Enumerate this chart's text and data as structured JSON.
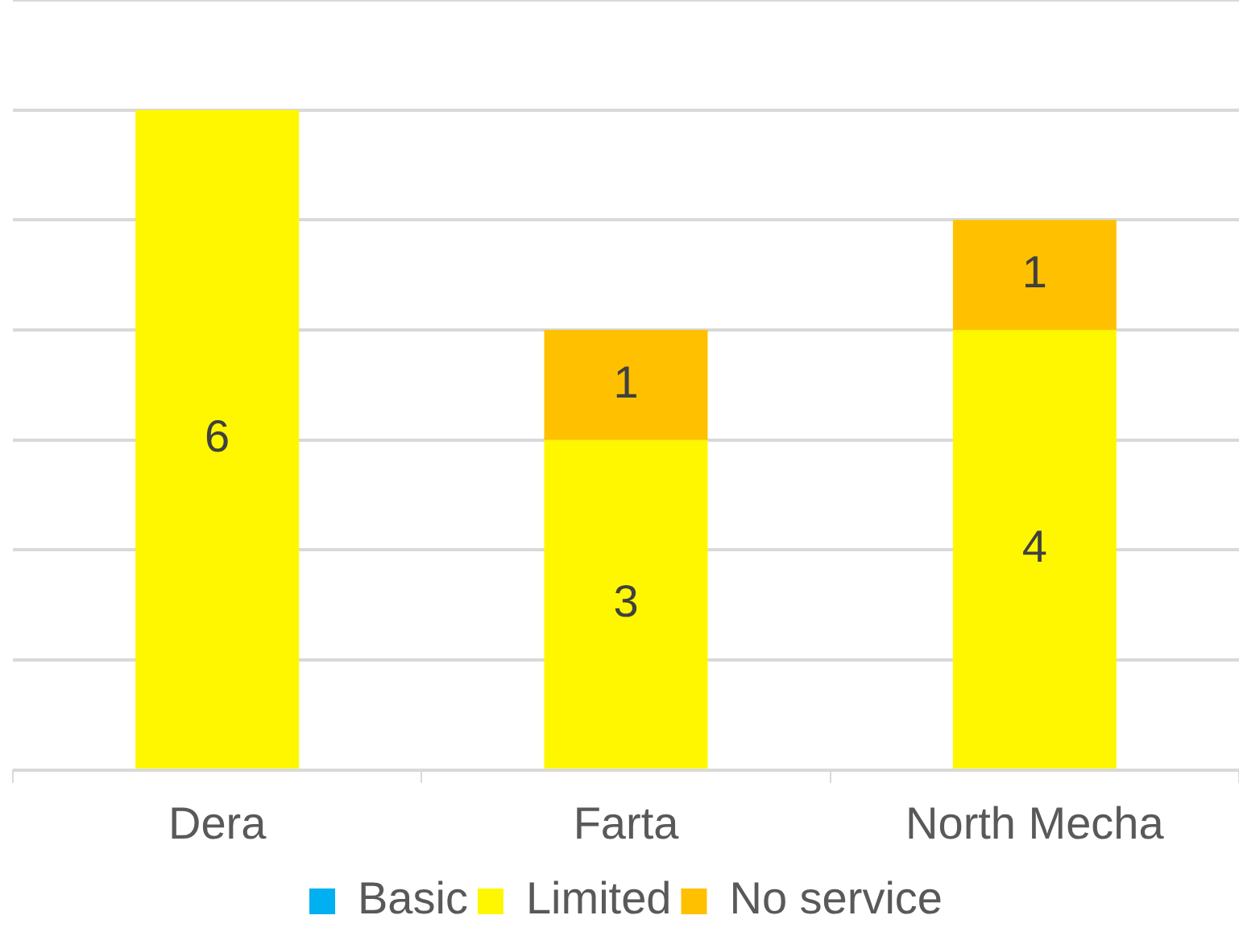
{
  "chart_data": {
    "type": "bar",
    "stacked": true,
    "categories": [
      "Dera",
      "Farta",
      "North Mecha"
    ],
    "series": [
      {
        "name": "Basic",
        "color": "#00b0f0",
        "values": [
          null,
          null,
          null
        ]
      },
      {
        "name": "Limited",
        "color": "#fff700",
        "values": [
          6,
          3,
          4
        ]
      },
      {
        "name": "No service",
        "color": "#ffc000",
        "values": [
          null,
          1,
          1
        ]
      }
    ],
    "ylim": [
      0,
      7
    ],
    "yticks": [
      {
        "value": 0,
        "label": null
      },
      {
        "value": 1,
        "label": null
      },
      {
        "value": 2,
        "label": null
      },
      {
        "value": 3,
        "label": null
      },
      {
        "value": 4,
        "label": null
      },
      {
        "value": 5,
        "label": null
      },
      {
        "value": 6,
        "label": null
      },
      {
        "value": 7,
        "label": null
      }
    ],
    "tick_labels": "x",
    "grid": "y",
    "legend": "bottom",
    "data_labels": true
  }
}
